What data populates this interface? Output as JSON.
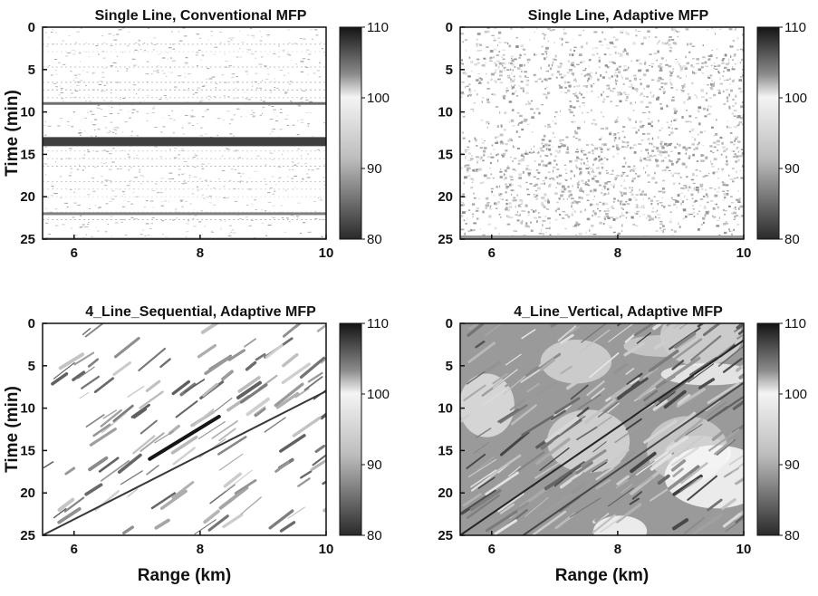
{
  "figure": {
    "xlabel": "Range (km)",
    "ylabel": "Time (min)"
  },
  "chart_data": [
    {
      "type": "heatmap",
      "title": "Single Line, Conventional MFP",
      "pattern": "horizontal-bands",
      "xlabel": "",
      "ylabel": "Time (min)",
      "xlim": [
        5.5,
        10
      ],
      "ylim": [
        0,
        25
      ],
      "y_inverted": true,
      "x_ticks": [
        "6",
        "8",
        "10"
      ],
      "y_ticks": [
        "0",
        "5",
        "10",
        "15",
        "20",
        "25"
      ],
      "colorbar": {
        "min": 80,
        "max": 110,
        "ticks": [
          "110",
          "100",
          "90",
          "80"
        ],
        "colormap": "grayscale (dark = high)"
      },
      "features": [
        {
          "time_min": 9,
          "level_db": 98
        },
        {
          "time_min": 13.5,
          "level_db": 104
        },
        {
          "time_min": 22,
          "level_db": 96
        },
        {
          "time_min": 25,
          "level_db": 97
        }
      ]
    },
    {
      "type": "heatmap",
      "title": "Single Line, Adaptive MFP",
      "pattern": "speckle",
      "xlabel": "",
      "ylabel": "",
      "xlim": [
        5.5,
        10
      ],
      "ylim": [
        0,
        25
      ],
      "y_inverted": true,
      "x_ticks": [
        "6",
        "8",
        "10"
      ],
      "y_ticks": [
        "0",
        "5",
        "10",
        "15",
        "20",
        "25"
      ],
      "colorbar": {
        "min": 80,
        "max": 110,
        "ticks": [
          "110",
          "100",
          "90",
          "80"
        ],
        "colormap": "grayscale (dark = high)"
      },
      "features": []
    },
    {
      "type": "heatmap",
      "title": "4_Line_Sequential, Adaptive MFP",
      "pattern": "diagonal-streaks",
      "xlabel": "Range (km)",
      "ylabel": "Time (min)",
      "xlim": [
        5.5,
        10
      ],
      "ylim": [
        0,
        25
      ],
      "y_inverted": true,
      "x_ticks": [
        "6",
        "8",
        "10"
      ],
      "y_ticks": [
        "0",
        "5",
        "10",
        "15",
        "20",
        "25"
      ],
      "colorbar": {
        "min": 80,
        "max": 110,
        "ticks": [
          "110",
          "100",
          "90",
          "80"
        ],
        "colormap": "grayscale (dark = high)"
      },
      "features": [
        {
          "track_start_km": 5.5,
          "track_start_min": 25,
          "track_end_km": 10,
          "track_end_min": 8,
          "level_db": 104
        },
        {
          "track_start_km": 7.2,
          "track_start_min": 16,
          "track_end_km": 8.3,
          "track_end_min": 11,
          "level_db": 108
        }
      ]
    },
    {
      "type": "heatmap",
      "title": "4_Line_Vertical, Adaptive MFP",
      "pattern": "diagonal-dense",
      "xlabel": "Range (km)",
      "ylabel": "",
      "xlim": [
        5.5,
        10
      ],
      "ylim": [
        0,
        25
      ],
      "y_inverted": true,
      "x_ticks": [
        "6",
        "8",
        "10"
      ],
      "y_ticks": [
        "0",
        "5",
        "10",
        "15",
        "20",
        "25"
      ],
      "colorbar": {
        "min": 80,
        "max": 110,
        "ticks": [
          "110",
          "100",
          "90",
          "80"
        ],
        "colormap": "grayscale (dark = high)"
      },
      "features": [
        {
          "track_start_km": 5.5,
          "track_start_min": 25,
          "track_end_km": 10,
          "track_end_min": 2,
          "level_db": 106
        },
        {
          "track_start_km": 6.5,
          "track_start_min": 25,
          "track_end_km": 10,
          "track_end_min": 7,
          "level_db": 102
        }
      ]
    }
  ]
}
